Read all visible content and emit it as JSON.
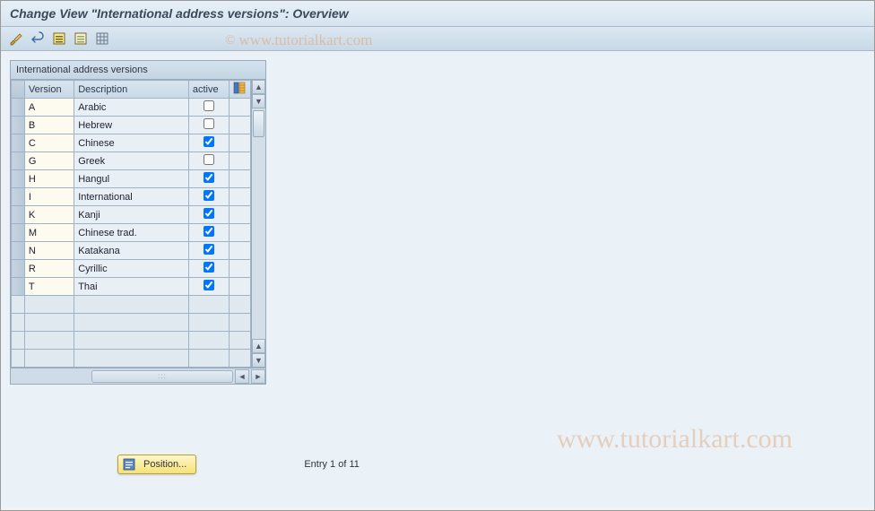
{
  "title": "Change View \"International address versions\": Overview",
  "panel": {
    "title": "International address versions",
    "columns": {
      "version": "Version",
      "description": "Description",
      "active": "active"
    },
    "rows": [
      {
        "version": "A",
        "description": "Arabic",
        "active": false
      },
      {
        "version": "B",
        "description": "Hebrew",
        "active": false
      },
      {
        "version": "C",
        "description": "Chinese",
        "active": true
      },
      {
        "version": "G",
        "description": "Greek",
        "active": false
      },
      {
        "version": "H",
        "description": "Hangul",
        "active": true
      },
      {
        "version": "I",
        "description": "International",
        "active": true
      },
      {
        "version": "K",
        "description": "Kanji",
        "active": true
      },
      {
        "version": "M",
        "description": "Chinese trad.",
        "active": true
      },
      {
        "version": "N",
        "description": "Katakana",
        "active": true
      },
      {
        "version": "R",
        "description": "Cyrillic",
        "active": true
      },
      {
        "version": "T",
        "description": "Thai",
        "active": true
      }
    ],
    "empty_rows": 4
  },
  "footer": {
    "position_label": "Position...",
    "entry_text": "Entry 1 of 11"
  },
  "watermark": "www.tutorialkart.com",
  "colors": {
    "header_bg": "#d6e4ef",
    "workspace_bg": "#eaf2f8",
    "editable_cell_bg": "#fdfbef",
    "button_yellow": "#f7e178"
  }
}
